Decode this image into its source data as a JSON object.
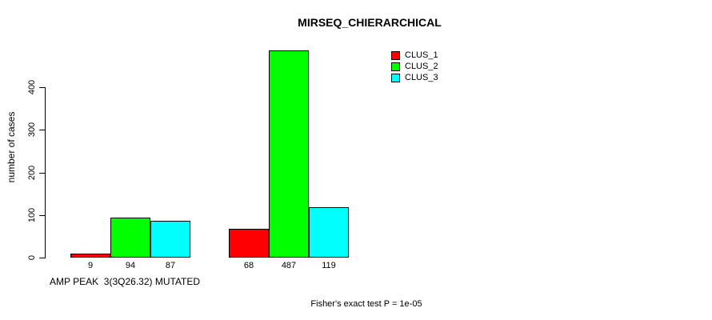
{
  "chart_data": {
    "type": "bar",
    "title": "MIRSEQ_CHIERARCHICAL",
    "ylabel": "number of cases",
    "group_label": "AMP PEAK  3(3Q26.32) MUTATED",
    "footnote": "Fisher's exact test P = 1e-05",
    "categories": [
      "AMP PEAK  3(3Q26.32) MUTATED",
      ""
    ],
    "series": [
      {
        "name": "CLUS_1",
        "color": "#ff0000",
        "values": [
          9,
          68
        ]
      },
      {
        "name": "CLUS_2",
        "color": "#00ff00",
        "values": [
          94,
          487
        ]
      },
      {
        "name": "CLUS_3",
        "color": "#00ffff",
        "values": [
          87,
          119
        ]
      }
    ],
    "yticks": [
      0,
      100,
      200,
      300,
      400
    ],
    "ylim": [
      0,
      500
    ],
    "grid": false,
    "legend_position": "top-right",
    "bar_value_labels_shown": true,
    "colors": {
      "background": "#ffffff",
      "axis": "#000000",
      "text": "#000000"
    }
  }
}
